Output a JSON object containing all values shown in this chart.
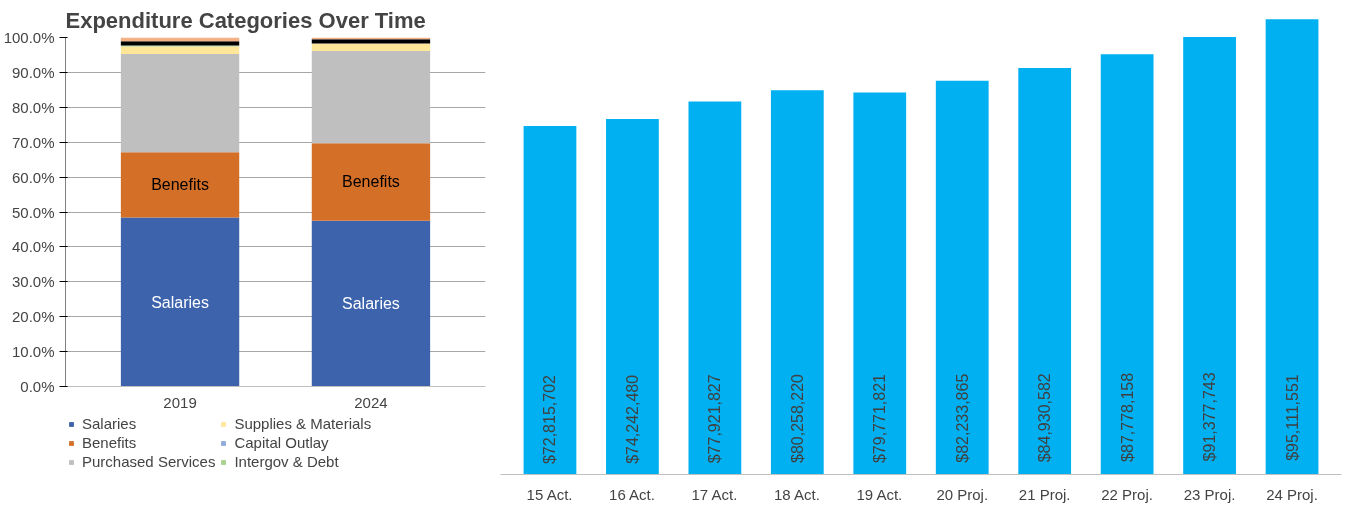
{
  "chart_data": [
    {
      "type": "bar",
      "stacked": true,
      "title": "Expenditure Categories Over Time",
      "categories": [
        "2019",
        "2024"
      ],
      "series": [
        {
          "name": "Salaries",
          "color": "#3c63ac",
          "values": [
            48.4,
            47.5
          ]
        },
        {
          "name": "Benefits",
          "color": "#d46f28",
          "values": [
            18.7,
            22.2
          ]
        },
        {
          "name": "Purchased Services",
          "color": "#bfbfbf",
          "values": [
            28.2,
            26.4
          ]
        },
        {
          "name": "Supplies & Materials",
          "color": "#ffe699",
          "values": [
            2.1,
            2.2
          ]
        },
        {
          "name": "Capital Outlay",
          "color": "#8faadc",
          "values": [
            0,
            0
          ]
        },
        {
          "name": "Intergov & Debt",
          "color": "#a9d18e",
          "values": [
            0.3,
            0
          ]
        },
        {
          "color": "#000000",
          "values": [
            1.2,
            1.2
          ]
        },
        {
          "color": "#f4b183",
          "values": [
            1.1,
            0.5
          ]
        }
      ],
      "ylim": [
        0,
        100
      ],
      "yticks": [
        {
          "value": 0,
          "label": "0.0%"
        },
        {
          "value": 10,
          "label": "10.0%"
        },
        {
          "value": 20,
          "label": "20.0%"
        },
        {
          "value": 30,
          "label": "30.0%"
        },
        {
          "value": 40,
          "label": "40.0%"
        },
        {
          "value": 50,
          "label": "50.0%"
        },
        {
          "value": 60,
          "label": "60.0%"
        },
        {
          "value": 70,
          "label": "70.0%"
        },
        {
          "value": 80,
          "label": "80.0%"
        },
        {
          "value": 90,
          "label": "90.0%"
        },
        {
          "value": 100,
          "label": "100.0%"
        }
      ],
      "grid": "y",
      "legend": "bottom",
      "annotations": [
        "Salaries",
        "Salaries",
        "Benefits",
        "Benefits"
      ]
    },
    {
      "type": "bar",
      "categories": [
        "15 Act.",
        "16 Act.",
        "17 Act.",
        "18 Act.",
        "19 Act.",
        "20 Proj.",
        "21 Proj.",
        "22 Proj.",
        "23 Proj.",
        "24 Proj."
      ],
      "series": [
        {
          "color": "#00b0f0",
          "values": [
            72815702,
            74242480,
            77921827,
            80258220,
            79771821,
            82233865,
            84930582,
            87778158,
            91377743,
            95111551
          ],
          "value_labels": [
            "$72,815,702",
            "$74,242,480",
            "$77,921,827",
            "$80,258,220",
            "$79,771,821",
            "$82,233,865",
            "$84,930,582",
            "$87,778,158",
            "$91,377,743",
            "$95,111,551"
          ]
        }
      ],
      "tick_labels": "x",
      "grid": false
    }
  ]
}
